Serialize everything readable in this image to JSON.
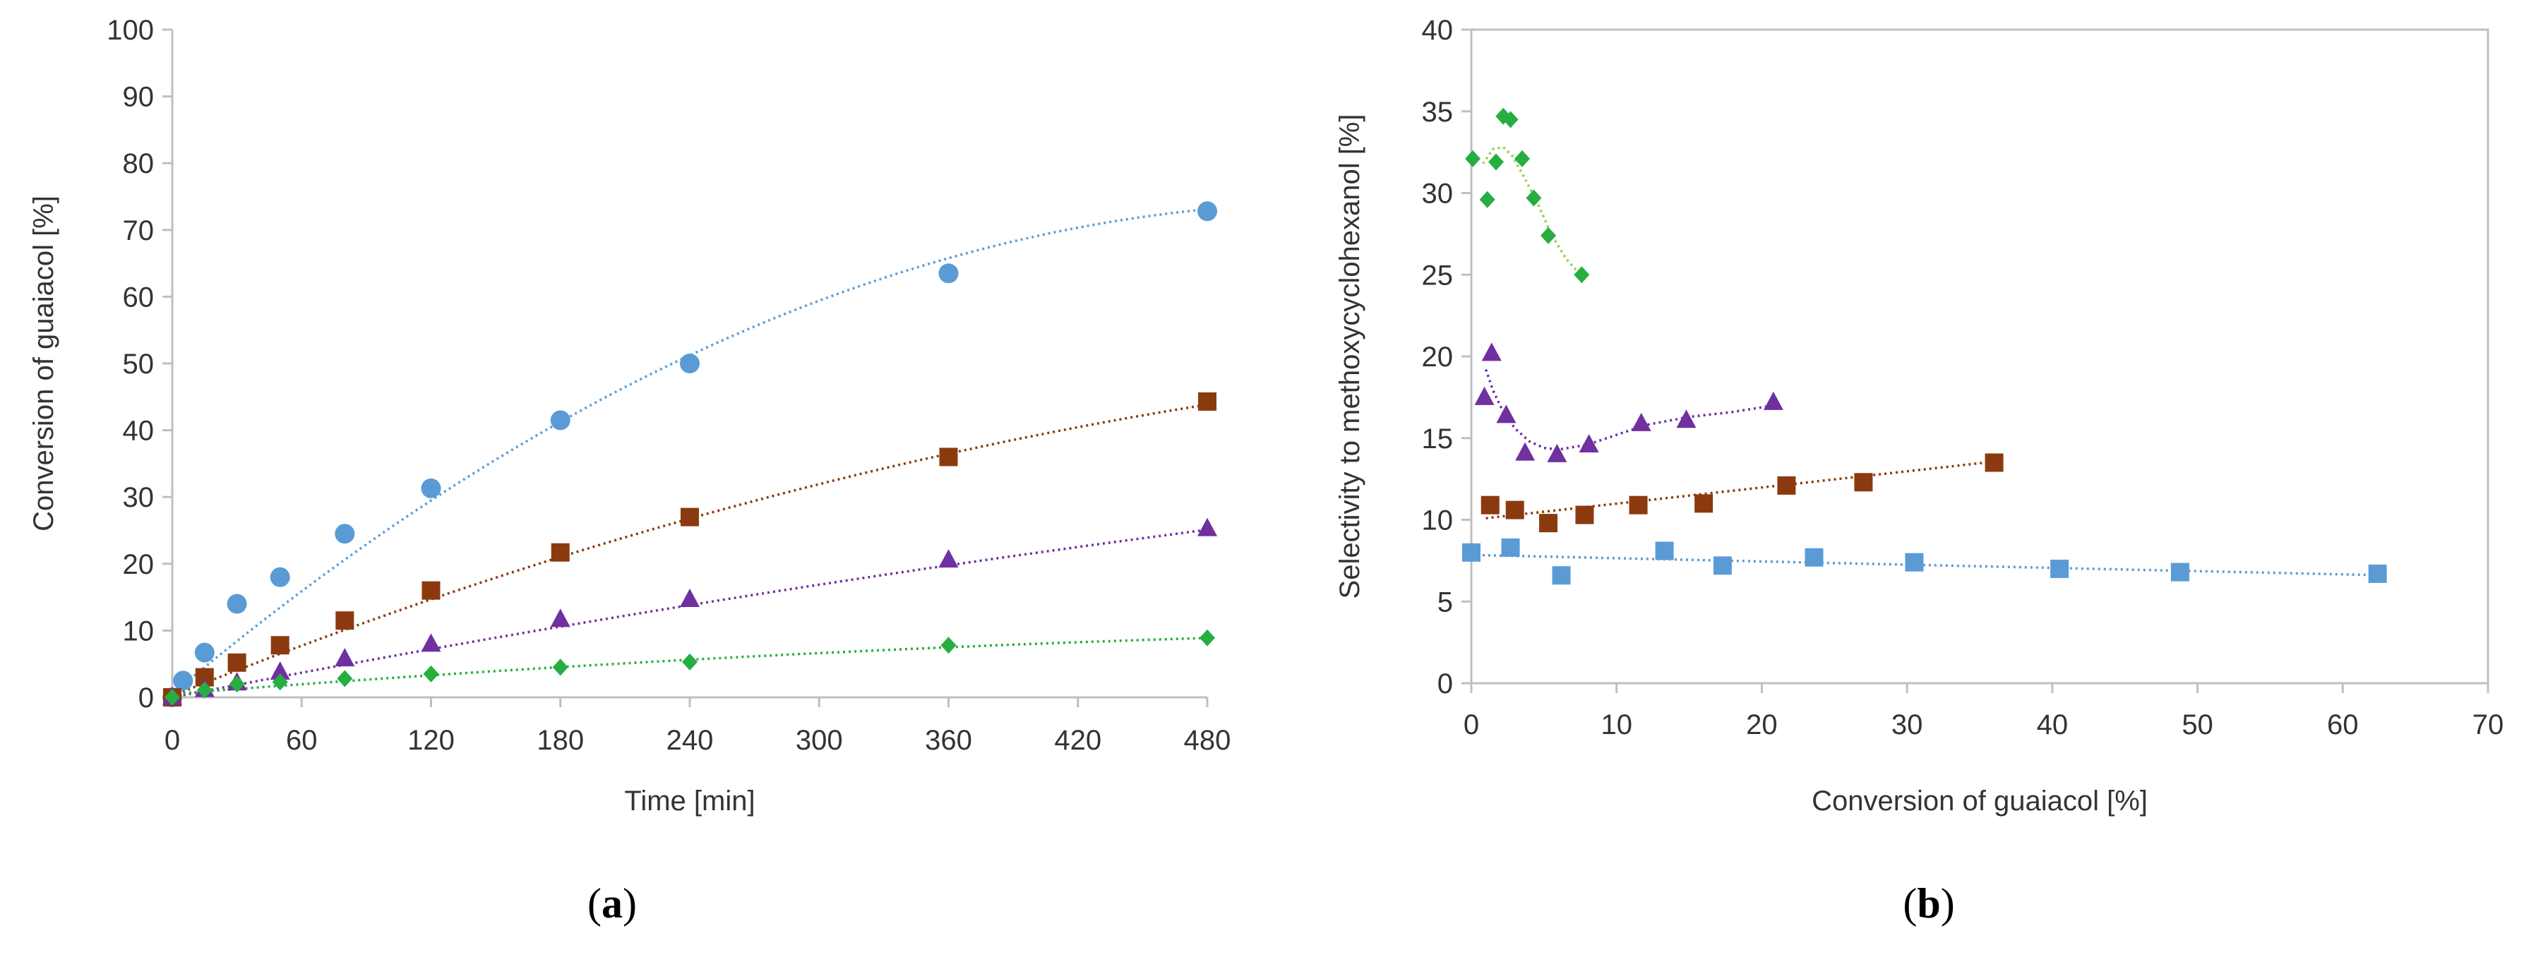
{
  "colors": {
    "blue": "#5b9bd5",
    "brown": "#8b3a0f",
    "purple": "#7030a0",
    "green": "#27ae40",
    "green_fit": "#92d050"
  },
  "chart_data": [
    {
      "type": "scatter",
      "panel_label": "a",
      "title": "",
      "xlabel": "Time [min]",
      "ylabel": "Conversion of guaiacol [%]",
      "xlim": [
        0,
        480
      ],
      "ylim": [
        0,
        100
      ],
      "xticks": [
        0,
        60,
        120,
        180,
        240,
        300,
        360,
        420,
        480
      ],
      "yticks": [
        0,
        10,
        20,
        30,
        40,
        50,
        60,
        70,
        80,
        90,
        100
      ],
      "grid": false,
      "series": [
        {
          "name": "blue",
          "marker": "circle",
          "color": "#5b9bd5",
          "x": [
            0,
            5,
            15,
            30,
            50,
            80,
            120,
            180,
            240,
            360,
            480
          ],
          "y": [
            0,
            2.5,
            6.7,
            14,
            18,
            24.5,
            31.3,
            41.5,
            50,
            63.5,
            72.8
          ],
          "fit": {
            "kind": "poly2",
            "coef": [
              0.5,
              0.2715,
              -0.0002505
            ]
          }
        },
        {
          "name": "brown",
          "marker": "square",
          "color": "#8b3a0f",
          "x": [
            0,
            15,
            30,
            50,
            80,
            120,
            180,
            240,
            360,
            480
          ],
          "y": [
            0,
            3,
            5.2,
            7.8,
            11.5,
            16,
            21.7,
            27,
            36,
            44.3
          ],
          "fit": {
            "kind": "poly2",
            "coef": [
              0.2,
              0.1305,
              -8.25e-05
            ]
          }
        },
        {
          "name": "purple",
          "marker": "triangle",
          "color": "#7030a0",
          "x": [
            0,
            15,
            30,
            50,
            80,
            120,
            180,
            240,
            360,
            480
          ],
          "y": [
            0,
            1.2,
            2.2,
            3.8,
            5.8,
            8,
            11.7,
            14.7,
            20.6,
            25.3
          ],
          "fit": {
            "kind": "poly2",
            "coef": [
              0,
              0.0628,
              -2.19e-05
            ]
          }
        },
        {
          "name": "green",
          "marker": "diamond",
          "color": "#27ae40",
          "x": [
            0,
            15,
            30,
            50,
            80,
            120,
            180,
            240,
            360,
            480
          ],
          "y": [
            0,
            1.1,
            2,
            2.3,
            2.8,
            3.5,
            4.5,
            5.3,
            7.8,
            8.9
          ],
          "fit": {
            "kind": "poly2",
            "coef": [
              0.5,
              0.0253,
              -1.63e-05
            ]
          }
        }
      ]
    },
    {
      "type": "scatter",
      "panel_label": "b",
      "title": "",
      "xlabel": "Conversion of guaiacol [%]",
      "ylabel": "Selectivity to methoxycyclohexanol [%]",
      "xlim": [
        0,
        70
      ],
      "ylim": [
        0,
        40
      ],
      "xticks": [
        0,
        10,
        20,
        30,
        40,
        50,
        60,
        70
      ],
      "yticks": [
        0,
        5,
        10,
        15,
        20,
        25,
        30,
        35,
        40
      ],
      "grid": false,
      "series": [
        {
          "name": "green",
          "marker": "diamond",
          "color": "#27ae40",
          "x": [
            0.1,
            1.1,
            1.7,
            2.2,
            2.7,
            3.5,
            4.3,
            5.3,
            7.6
          ],
          "y": [
            32.1,
            29.6,
            31.9,
            34.7,
            34.5,
            32.1,
            29.7,
            27.4,
            25
          ],
          "fit": {
            "kind": "points",
            "color": "#92d050",
            "x": [
              0.8,
              1.5,
              2.2,
              2.8,
              3.5,
              4.5,
              5.5,
              6.5,
              7.5
            ],
            "y": [
              31.8,
              32.7,
              32.8,
              32.3,
              31.2,
              29.5,
              27.5,
              26,
              25
            ]
          }
        },
        {
          "name": "purple",
          "marker": "triangle",
          "color": "#7030a0",
          "x": [
            0.9,
            1.4,
            2.4,
            3.7,
            5.9,
            8.1,
            11.7,
            14.8,
            20.8
          ],
          "y": [
            17.5,
            20.2,
            16.4,
            14.1,
            14,
            14.6,
            15.9,
            16.1,
            17.2
          ],
          "fit": {
            "kind": "points",
            "x": [
              1,
              1.5,
              2.2,
              3,
              4,
              5,
              6,
              8,
              10,
              12,
              15,
              18,
              20.8
            ],
            "y": [
              19.2,
              17.9,
              16.6,
              15.6,
              14.8,
              14.4,
              14.3,
              14.6,
              15.2,
              15.8,
              16.3,
              16.6,
              17
            ]
          }
        },
        {
          "name": "brown",
          "marker": "square",
          "color": "#8b3a0f",
          "x": [
            1.3,
            3,
            5.3,
            7.8,
            11.5,
            16,
            21.7,
            27,
            36
          ],
          "y": [
            10.9,
            10.6,
            9.8,
            10.3,
            10.9,
            11,
            12.1,
            12.3,
            13.5
          ],
          "fit": {
            "kind": "line",
            "coef": [
              10,
              0.099
            ],
            "x": [
              1,
              36
            ]
          }
        },
        {
          "name": "blue",
          "marker": "square",
          "color": "#5b9bd5",
          "x": [
            0,
            2.7,
            6.2,
            13.3,
            17.3,
            23.6,
            30.5,
            40.5,
            48.8,
            62.4
          ],
          "y": [
            8,
            8.3,
            6.6,
            8.1,
            7.2,
            7.7,
            7.4,
            7,
            6.8,
            6.7
          ],
          "fit": {
            "kind": "line",
            "coef": [
              7.85,
              -0.0198
            ],
            "x": [
              0,
              62.4
            ]
          }
        }
      ]
    }
  ]
}
